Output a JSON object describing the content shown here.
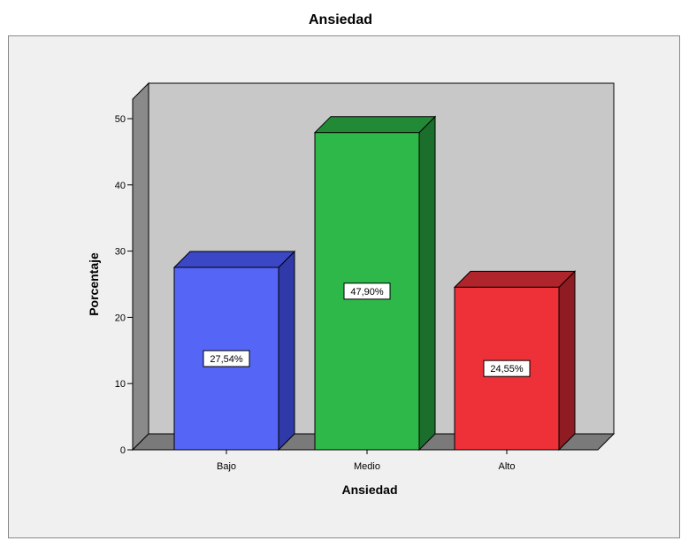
{
  "chart_data": {
    "type": "bar",
    "title": "Ansiedad",
    "xlabel": "Ansiedad",
    "ylabel": "Porcentaje",
    "categories": [
      "Bajo",
      "Medio",
      "Alto"
    ],
    "values": [
      27.54,
      47.9,
      24.55
    ],
    "data_labels": [
      "27,54%",
      "47,90%",
      "24,55%"
    ],
    "colors": [
      "#5566f6",
      "#2eb84a",
      "#ee3038"
    ],
    "side_colors": [
      "#2f3aa8",
      "#1b6e2b",
      "#8e1c22"
    ],
    "top_colors": [
      "#3b47c4",
      "#228a37",
      "#b0242b"
    ],
    "ylim": [
      0,
      50
    ],
    "yticks": [
      0,
      10,
      20,
      30,
      40,
      50
    ],
    "grid": false,
    "style": "3d",
    "wall_color": "#c8c8c8",
    "floor_color": "#7a7a7a",
    "frame_color": "#f0f0f0"
  }
}
